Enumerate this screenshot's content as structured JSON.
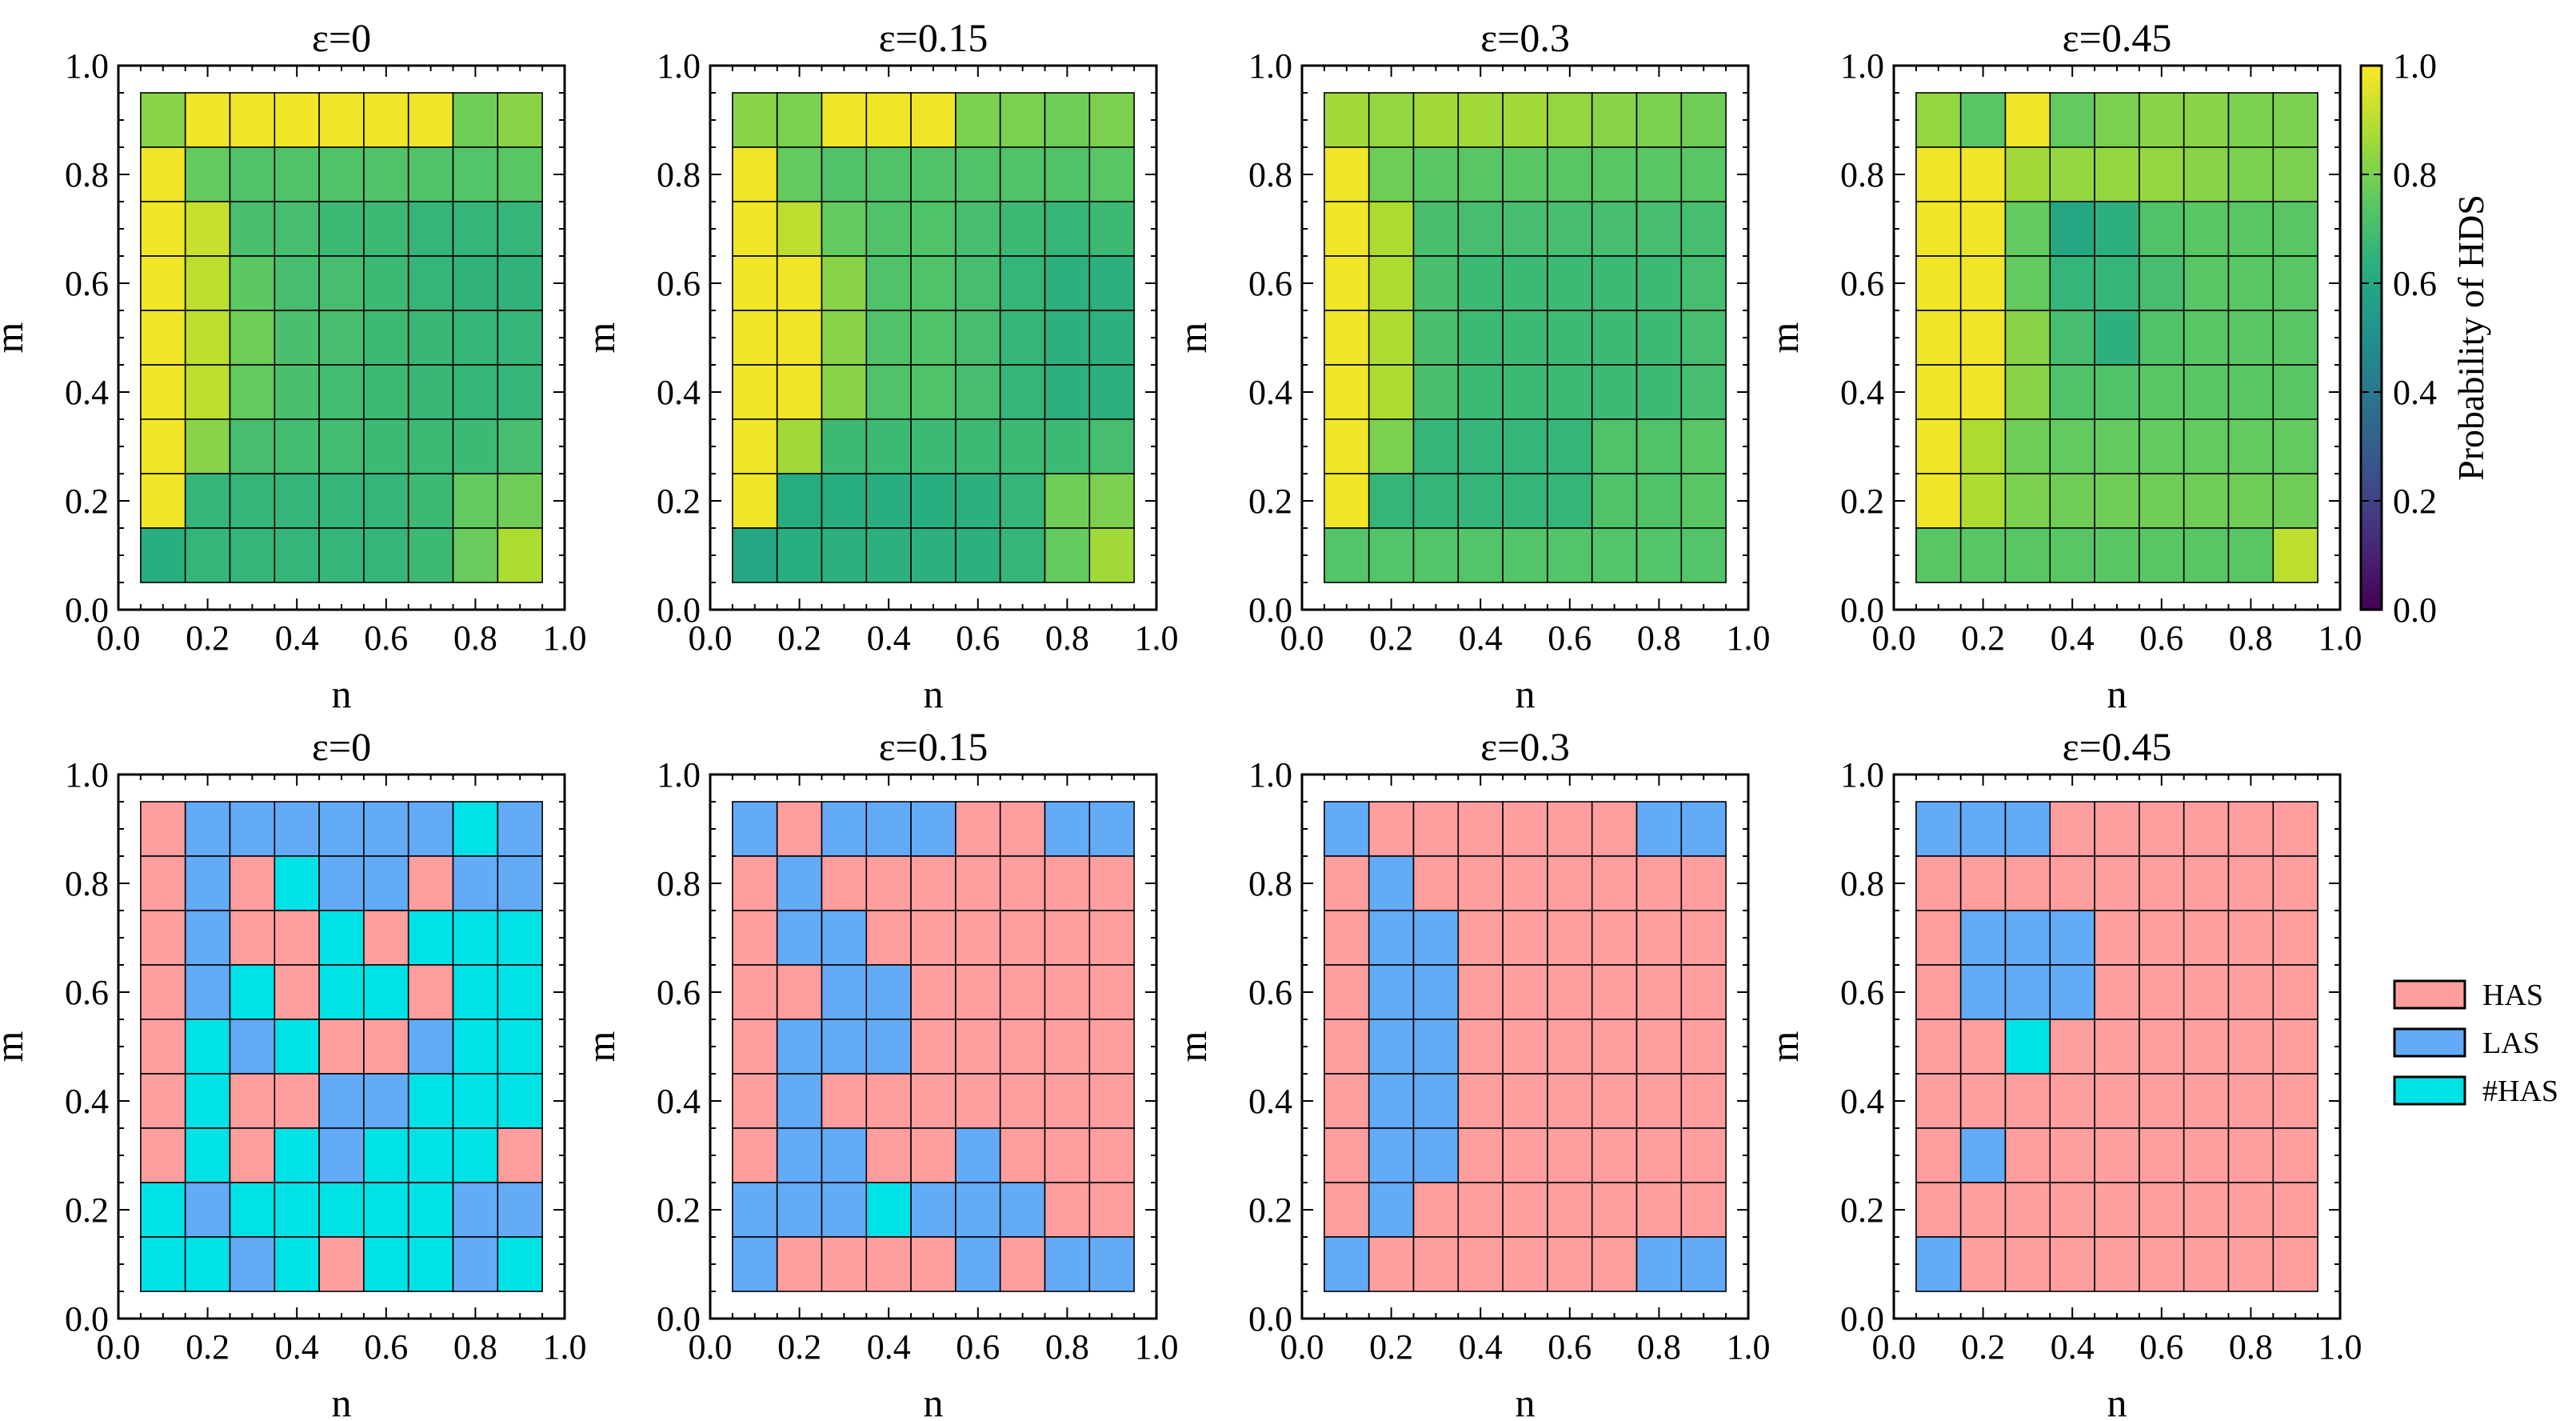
{
  "figure": {
    "colorbar": {
      "label": "Probability of HDS",
      "ticks": [
        "0.0",
        "0.2",
        "0.4",
        "0.6",
        "0.8",
        "1.0"
      ],
      "tick_values": [
        0.0,
        0.2,
        0.4,
        0.6,
        0.8,
        1.0
      ],
      "range": [
        0,
        1
      ],
      "colormap": "viridis"
    },
    "category_legend": [
      {
        "label": "HAS",
        "color": "#ff9e9e"
      },
      {
        "label": "LAS",
        "color": "#63aaf7"
      },
      {
        "label": "#HAS",
        "color": "#00e2e6"
      }
    ]
  },
  "chart_data": [
    {
      "type": "heatmap",
      "title": "ε=0",
      "xlabel": "n",
      "ylabel": "m",
      "xlim": [
        0,
        1
      ],
      "ylim": [
        0,
        1
      ],
      "x_ticks": [
        "0.0",
        "0.2",
        "0.4",
        "0.6",
        "0.8",
        "1.0"
      ],
      "y_ticks": [
        "0.0",
        "0.2",
        "0.4",
        "0.6",
        "0.8",
        "1.0"
      ],
      "x": [
        0.1,
        0.2,
        0.3,
        0.4,
        0.5,
        0.6,
        0.7,
        0.8,
        0.9
      ],
      "y": [
        0.9,
        0.8,
        0.7,
        0.6,
        0.5,
        0.4,
        0.3,
        0.2,
        0.1
      ],
      "values": [
        [
          0.82,
          0.98,
          0.98,
          0.98,
          0.98,
          0.98,
          0.98,
          0.78,
          0.82
        ],
        [
          0.98,
          0.76,
          0.72,
          0.72,
          0.72,
          0.72,
          0.72,
          0.73,
          0.74
        ],
        [
          0.98,
          0.92,
          0.71,
          0.7,
          0.68,
          0.68,
          0.66,
          0.66,
          0.66
        ],
        [
          0.98,
          0.9,
          0.75,
          0.7,
          0.7,
          0.68,
          0.66,
          0.65,
          0.65
        ],
        [
          0.98,
          0.9,
          0.78,
          0.71,
          0.7,
          0.68,
          0.67,
          0.66,
          0.66
        ],
        [
          0.98,
          0.9,
          0.76,
          0.71,
          0.69,
          0.68,
          0.67,
          0.66,
          0.66
        ],
        [
          0.98,
          0.82,
          0.7,
          0.69,
          0.69,
          0.68,
          0.68,
          0.68,
          0.7
        ],
        [
          0.98,
          0.66,
          0.66,
          0.66,
          0.66,
          0.66,
          0.68,
          0.76,
          0.78
        ],
        [
          0.63,
          0.66,
          0.66,
          0.66,
          0.66,
          0.66,
          0.68,
          0.77,
          0.88
        ]
      ]
    },
    {
      "type": "heatmap",
      "title": "ε=0.15",
      "xlabel": "n",
      "ylabel": "m",
      "xlim": [
        0,
        1
      ],
      "ylim": [
        0,
        1
      ],
      "x_ticks": [
        "0.0",
        "0.2",
        "0.4",
        "0.6",
        "0.8",
        "1.0"
      ],
      "y_ticks": [
        "0.0",
        "0.2",
        "0.4",
        "0.6",
        "0.8",
        "1.0"
      ],
      "x": [
        0.1,
        0.2,
        0.3,
        0.4,
        0.5,
        0.6,
        0.7,
        0.8,
        0.9
      ],
      "y": [
        0.9,
        0.8,
        0.7,
        0.6,
        0.5,
        0.4,
        0.3,
        0.2,
        0.1
      ],
      "values": [
        [
          0.82,
          0.8,
          0.98,
          0.98,
          0.98,
          0.8,
          0.8,
          0.78,
          0.8
        ],
        [
          0.98,
          0.76,
          0.72,
          0.72,
          0.72,
          0.72,
          0.72,
          0.72,
          0.74
        ],
        [
          0.98,
          0.9,
          0.76,
          0.72,
          0.72,
          0.7,
          0.68,
          0.66,
          0.68
        ],
        [
          0.98,
          0.98,
          0.82,
          0.72,
          0.72,
          0.7,
          0.66,
          0.64,
          0.64
        ],
        [
          0.98,
          0.98,
          0.82,
          0.72,
          0.72,
          0.7,
          0.66,
          0.64,
          0.64
        ],
        [
          0.98,
          0.98,
          0.82,
          0.72,
          0.72,
          0.7,
          0.66,
          0.64,
          0.64
        ],
        [
          0.98,
          0.86,
          0.68,
          0.68,
          0.68,
          0.68,
          0.68,
          0.68,
          0.7
        ],
        [
          0.98,
          0.62,
          0.63,
          0.63,
          0.63,
          0.64,
          0.66,
          0.78,
          0.8
        ],
        [
          0.6,
          0.63,
          0.64,
          0.64,
          0.64,
          0.64,
          0.66,
          0.76,
          0.86
        ]
      ]
    },
    {
      "type": "heatmap",
      "title": "ε=0.3",
      "xlabel": "n",
      "ylabel": "m",
      "xlim": [
        0,
        1
      ],
      "ylim": [
        0,
        1
      ],
      "x_ticks": [
        "0.0",
        "0.2",
        "0.4",
        "0.6",
        "0.8",
        "1.0"
      ],
      "y_ticks": [
        "0.0",
        "0.2",
        "0.4",
        "0.6",
        "0.8",
        "1.0"
      ],
      "x": [
        0.1,
        0.2,
        0.3,
        0.4,
        0.5,
        0.6,
        0.7,
        0.8,
        0.9
      ],
      "y": [
        0.9,
        0.8,
        0.7,
        0.6,
        0.5,
        0.4,
        0.3,
        0.2,
        0.1
      ],
      "values": [
        [
          0.86,
          0.84,
          0.86,
          0.86,
          0.86,
          0.84,
          0.82,
          0.8,
          0.78
        ],
        [
          0.98,
          0.78,
          0.74,
          0.74,
          0.74,
          0.74,
          0.74,
          0.74,
          0.74
        ],
        [
          0.98,
          0.88,
          0.71,
          0.7,
          0.7,
          0.7,
          0.7,
          0.7,
          0.7
        ],
        [
          0.98,
          0.88,
          0.71,
          0.68,
          0.68,
          0.68,
          0.68,
          0.68,
          0.7
        ],
        [
          0.98,
          0.88,
          0.71,
          0.68,
          0.68,
          0.68,
          0.68,
          0.68,
          0.7
        ],
        [
          0.98,
          0.88,
          0.71,
          0.68,
          0.68,
          0.68,
          0.68,
          0.68,
          0.7
        ],
        [
          0.98,
          0.8,
          0.66,
          0.66,
          0.66,
          0.66,
          0.72,
          0.72,
          0.74
        ],
        [
          0.98,
          0.66,
          0.66,
          0.66,
          0.66,
          0.66,
          0.72,
          0.72,
          0.74
        ],
        [
          0.73,
          0.73,
          0.73,
          0.73,
          0.73,
          0.73,
          0.73,
          0.73,
          0.73
        ]
      ]
    },
    {
      "type": "heatmap",
      "title": "ε=0.45",
      "xlabel": "n",
      "ylabel": "m",
      "xlim": [
        0,
        1
      ],
      "ylim": [
        0,
        1
      ],
      "x_ticks": [
        "0.0",
        "0.2",
        "0.4",
        "0.6",
        "0.8",
        "1.0"
      ],
      "y_ticks": [
        "0.0",
        "0.2",
        "0.4",
        "0.6",
        "0.8",
        "1.0"
      ],
      "x": [
        0.1,
        0.2,
        0.3,
        0.4,
        0.5,
        0.6,
        0.7,
        0.8,
        0.9
      ],
      "y": [
        0.9,
        0.8,
        0.7,
        0.6,
        0.5,
        0.4,
        0.3,
        0.2,
        0.1
      ],
      "values": [
        [
          0.84,
          0.74,
          0.98,
          0.76,
          0.8,
          0.82,
          0.82,
          0.8,
          0.8
        ],
        [
          0.98,
          0.98,
          0.86,
          0.84,
          0.84,
          0.84,
          0.82,
          0.8,
          0.8
        ],
        [
          0.98,
          0.98,
          0.76,
          0.6,
          0.64,
          0.72,
          0.74,
          0.74,
          0.74
        ],
        [
          0.98,
          0.98,
          0.76,
          0.66,
          0.66,
          0.7,
          0.74,
          0.74,
          0.74
        ],
        [
          0.98,
          0.98,
          0.82,
          0.7,
          0.64,
          0.72,
          0.74,
          0.74,
          0.74
        ],
        [
          0.98,
          0.98,
          0.82,
          0.72,
          0.72,
          0.74,
          0.74,
          0.74,
          0.74
        ],
        [
          0.98,
          0.88,
          0.78,
          0.76,
          0.76,
          0.76,
          0.76,
          0.76,
          0.76
        ],
        [
          0.98,
          0.88,
          0.8,
          0.78,
          0.78,
          0.78,
          0.78,
          0.78,
          0.78
        ],
        [
          0.74,
          0.74,
          0.74,
          0.74,
          0.74,
          0.74,
          0.74,
          0.74,
          0.9
        ]
      ]
    },
    {
      "type": "heatmap",
      "title": "ε=0",
      "xlabel": "n",
      "ylabel": "m",
      "xlim": [
        0,
        1
      ],
      "ylim": [
        0,
        1
      ],
      "x_ticks": [
        "0.0",
        "0.2",
        "0.4",
        "0.6",
        "0.8",
        "1.0"
      ],
      "y_ticks": [
        "0.0",
        "0.2",
        "0.4",
        "0.6",
        "0.8",
        "1.0"
      ],
      "x": [
        0.1,
        0.2,
        0.3,
        0.4,
        0.5,
        0.6,
        0.7,
        0.8,
        0.9
      ],
      "y": [
        0.9,
        0.8,
        0.7,
        0.6,
        0.5,
        0.4,
        0.3,
        0.2,
        0.1
      ],
      "category_values": [
        [
          "HAS",
          "LAS",
          "LAS",
          "LAS",
          "LAS",
          "LAS",
          "LAS",
          "#HAS",
          "LAS"
        ],
        [
          "HAS",
          "LAS",
          "HAS",
          "#HAS",
          "LAS",
          "LAS",
          "HAS",
          "LAS",
          "LAS"
        ],
        [
          "HAS",
          "LAS",
          "HAS",
          "HAS",
          "#HAS",
          "HAS",
          "#HAS",
          "#HAS",
          "#HAS"
        ],
        [
          "HAS",
          "LAS",
          "#HAS",
          "HAS",
          "#HAS",
          "#HAS",
          "HAS",
          "#HAS",
          "#HAS"
        ],
        [
          "HAS",
          "#HAS",
          "LAS",
          "#HAS",
          "HAS",
          "HAS",
          "LAS",
          "#HAS",
          "#HAS"
        ],
        [
          "HAS",
          "#HAS",
          "HAS",
          "HAS",
          "LAS",
          "LAS",
          "#HAS",
          "#HAS",
          "#HAS"
        ],
        [
          "HAS",
          "#HAS",
          "HAS",
          "#HAS",
          "LAS",
          "#HAS",
          "#HAS",
          "#HAS",
          "HAS"
        ],
        [
          "#HAS",
          "LAS",
          "#HAS",
          "#HAS",
          "#HAS",
          "#HAS",
          "#HAS",
          "LAS",
          "LAS"
        ],
        [
          "#HAS",
          "#HAS",
          "LAS",
          "#HAS",
          "HAS",
          "#HAS",
          "#HAS",
          "LAS",
          "#HAS"
        ]
      ]
    },
    {
      "type": "heatmap",
      "title": "ε=0.15",
      "xlabel": "n",
      "ylabel": "m",
      "xlim": [
        0,
        1
      ],
      "ylim": [
        0,
        1
      ],
      "x_ticks": [
        "0.0",
        "0.2",
        "0.4",
        "0.6",
        "0.8",
        "1.0"
      ],
      "y_ticks": [
        "0.0",
        "0.2",
        "0.4",
        "0.6",
        "0.8",
        "1.0"
      ],
      "x": [
        0.1,
        0.2,
        0.3,
        0.4,
        0.5,
        0.6,
        0.7,
        0.8,
        0.9
      ],
      "y": [
        0.9,
        0.8,
        0.7,
        0.6,
        0.5,
        0.4,
        0.3,
        0.2,
        0.1
      ],
      "category_values": [
        [
          "LAS",
          "HAS",
          "LAS",
          "LAS",
          "LAS",
          "HAS",
          "HAS",
          "LAS",
          "LAS"
        ],
        [
          "HAS",
          "LAS",
          "HAS",
          "HAS",
          "HAS",
          "HAS",
          "HAS",
          "HAS",
          "HAS"
        ],
        [
          "HAS",
          "LAS",
          "LAS",
          "HAS",
          "HAS",
          "HAS",
          "HAS",
          "HAS",
          "HAS"
        ],
        [
          "HAS",
          "HAS",
          "LAS",
          "LAS",
          "HAS",
          "HAS",
          "HAS",
          "HAS",
          "HAS"
        ],
        [
          "HAS",
          "LAS",
          "LAS",
          "LAS",
          "HAS",
          "HAS",
          "HAS",
          "HAS",
          "HAS"
        ],
        [
          "HAS",
          "LAS",
          "HAS",
          "HAS",
          "HAS",
          "HAS",
          "HAS",
          "HAS",
          "HAS"
        ],
        [
          "HAS",
          "LAS",
          "LAS",
          "HAS",
          "HAS",
          "LAS",
          "HAS",
          "HAS",
          "HAS"
        ],
        [
          "LAS",
          "LAS",
          "LAS",
          "#HAS",
          "LAS",
          "LAS",
          "LAS",
          "HAS",
          "HAS"
        ],
        [
          "LAS",
          "HAS",
          "HAS",
          "HAS",
          "HAS",
          "LAS",
          "HAS",
          "LAS",
          "LAS"
        ]
      ]
    },
    {
      "type": "heatmap",
      "title": "ε=0.3",
      "xlabel": "n",
      "ylabel": "m",
      "xlim": [
        0,
        1
      ],
      "ylim": [
        0,
        1
      ],
      "x_ticks": [
        "0.0",
        "0.2",
        "0.4",
        "0.6",
        "0.8",
        "1.0"
      ],
      "y_ticks": [
        "0.0",
        "0.2",
        "0.4",
        "0.6",
        "0.8",
        "1.0"
      ],
      "x": [
        0.1,
        0.2,
        0.3,
        0.4,
        0.5,
        0.6,
        0.7,
        0.8,
        0.9
      ],
      "y": [
        0.9,
        0.8,
        0.7,
        0.6,
        0.5,
        0.4,
        0.3,
        0.2,
        0.1
      ],
      "category_values": [
        [
          "LAS",
          "HAS",
          "HAS",
          "HAS",
          "HAS",
          "HAS",
          "HAS",
          "LAS",
          "LAS"
        ],
        [
          "HAS",
          "LAS",
          "HAS",
          "HAS",
          "HAS",
          "HAS",
          "HAS",
          "HAS",
          "HAS"
        ],
        [
          "HAS",
          "LAS",
          "LAS",
          "HAS",
          "HAS",
          "HAS",
          "HAS",
          "HAS",
          "HAS"
        ],
        [
          "HAS",
          "LAS",
          "LAS",
          "HAS",
          "HAS",
          "HAS",
          "HAS",
          "HAS",
          "HAS"
        ],
        [
          "HAS",
          "LAS",
          "LAS",
          "HAS",
          "HAS",
          "HAS",
          "HAS",
          "HAS",
          "HAS"
        ],
        [
          "HAS",
          "LAS",
          "LAS",
          "HAS",
          "HAS",
          "HAS",
          "HAS",
          "HAS",
          "HAS"
        ],
        [
          "HAS",
          "LAS",
          "LAS",
          "HAS",
          "HAS",
          "HAS",
          "HAS",
          "HAS",
          "HAS"
        ],
        [
          "HAS",
          "LAS",
          "HAS",
          "HAS",
          "HAS",
          "HAS",
          "HAS",
          "HAS",
          "HAS"
        ],
        [
          "LAS",
          "HAS",
          "HAS",
          "HAS",
          "HAS",
          "HAS",
          "HAS",
          "LAS",
          "LAS"
        ]
      ]
    },
    {
      "type": "heatmap",
      "title": "ε=0.45",
      "xlabel": "n",
      "ylabel": "m",
      "xlim": [
        0,
        1
      ],
      "ylim": [
        0,
        1
      ],
      "x_ticks": [
        "0.0",
        "0.2",
        "0.4",
        "0.6",
        "0.8",
        "1.0"
      ],
      "y_ticks": [
        "0.0",
        "0.2",
        "0.4",
        "0.6",
        "0.8",
        "1.0"
      ],
      "x": [
        0.1,
        0.2,
        0.3,
        0.4,
        0.5,
        0.6,
        0.7,
        0.8,
        0.9
      ],
      "y": [
        0.9,
        0.8,
        0.7,
        0.6,
        0.5,
        0.4,
        0.3,
        0.2,
        0.1
      ],
      "category_values": [
        [
          "LAS",
          "LAS",
          "LAS",
          "HAS",
          "HAS",
          "HAS",
          "HAS",
          "HAS",
          "HAS"
        ],
        [
          "HAS",
          "HAS",
          "HAS",
          "HAS",
          "HAS",
          "HAS",
          "HAS",
          "HAS",
          "HAS"
        ],
        [
          "HAS",
          "LAS",
          "LAS",
          "LAS",
          "HAS",
          "HAS",
          "HAS",
          "HAS",
          "HAS"
        ],
        [
          "HAS",
          "LAS",
          "LAS",
          "LAS",
          "HAS",
          "HAS",
          "HAS",
          "HAS",
          "HAS"
        ],
        [
          "HAS",
          "HAS",
          "#HAS",
          "HAS",
          "HAS",
          "HAS",
          "HAS",
          "HAS",
          "HAS"
        ],
        [
          "HAS",
          "HAS",
          "HAS",
          "HAS",
          "HAS",
          "HAS",
          "HAS",
          "HAS",
          "HAS"
        ],
        [
          "HAS",
          "LAS",
          "HAS",
          "HAS",
          "HAS",
          "HAS",
          "HAS",
          "HAS",
          "HAS"
        ],
        [
          "HAS",
          "HAS",
          "HAS",
          "HAS",
          "HAS",
          "HAS",
          "HAS",
          "HAS",
          "HAS"
        ],
        [
          "LAS",
          "HAS",
          "HAS",
          "HAS",
          "HAS",
          "HAS",
          "HAS",
          "HAS",
          "HAS"
        ]
      ]
    }
  ]
}
